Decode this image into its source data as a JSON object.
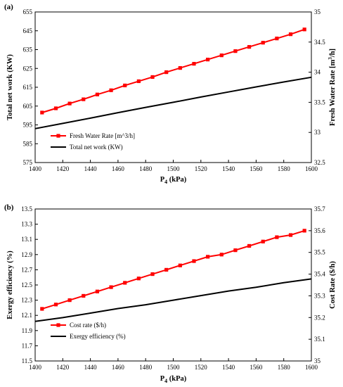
{
  "chart_data": [
    {
      "type": "line",
      "panel_label": "(a)",
      "xlabel": "P4 (kPa)",
      "xlabel_main": "P",
      "xlabel_sub": "4",
      "xlabel_rest": " (kPa)",
      "ylabel_left": "Total net work (KW)",
      "ylabel_right": "Fresh Water Rate  [m3/h]",
      "ylabel_right_main": "Fresh Water Rate  [m",
      "ylabel_right_sup": "3",
      "ylabel_right_rest": "/h]",
      "xlim": [
        1400,
        1600
      ],
      "xticks": [
        "1400",
        "1420",
        "1440",
        "1460",
        "1480",
        "1500",
        "1520",
        "1540",
        "1560",
        "1580",
        "1600"
      ],
      "ylim_left": [
        575,
        655
      ],
      "yticks_left": [
        "575",
        "585",
        "595",
        "605",
        "615",
        "625",
        "635",
        "645",
        "655"
      ],
      "ylim_right": [
        32.5,
        35
      ],
      "yticks_right": [
        "32.5",
        "33",
        "33.5",
        "34",
        "34.5",
        "35"
      ],
      "legend_position": "lower-left",
      "grid": false,
      "series": [
        {
          "name": "Fresh Water Rate  [m^3/h]",
          "axis": "right",
          "color": "#ff0000",
          "marker": "square",
          "x": [
            1405,
            1415,
            1425,
            1435,
            1445,
            1455,
            1465,
            1475,
            1485,
            1495,
            1505,
            1515,
            1525,
            1535,
            1545,
            1555,
            1565,
            1575,
            1585,
            1595
          ],
          "values": [
            33.33,
            33.4,
            33.48,
            33.55,
            33.63,
            33.7,
            33.78,
            33.85,
            33.92,
            34.0,
            34.07,
            34.14,
            34.21,
            34.28,
            34.35,
            34.42,
            34.49,
            34.56,
            34.63,
            34.71
          ]
        },
        {
          "name": "Total net work (KW)",
          "axis": "left",
          "color": "#000000",
          "marker": "none",
          "x": [
            1400,
            1420,
            1440,
            1460,
            1480,
            1500,
            1520,
            1540,
            1560,
            1580,
            1600
          ],
          "values": [
            593,
            595.8,
            598.6,
            601.5,
            604.3,
            607,
            609.8,
            612.5,
            615.2,
            617.8,
            620.3
          ]
        }
      ]
    },
    {
      "type": "line",
      "panel_label": "(b)",
      "xlabel": "P4 (kPa)",
      "xlabel_main": "P",
      "xlabel_sub": "4",
      "xlabel_rest": " (kPa)",
      "ylabel_left": "Exergy efficiency (%)",
      "ylabel_right": "Cost Rate ($/h)",
      "xlim": [
        1400,
        1600
      ],
      "xticks": [
        "1400",
        "1420",
        "1440",
        "1460",
        "1480",
        "1500",
        "1520",
        "1540",
        "1560",
        "1580",
        "1600"
      ],
      "ylim_left": [
        11.5,
        13.5
      ],
      "yticks_left": [
        "11.5",
        "11.7",
        "11.9",
        "12.1",
        "12.3",
        "12.5",
        "12.7",
        "12.9",
        "13.1",
        "13.3",
        "13.5"
      ],
      "ylim_right": [
        35,
        35.7
      ],
      "yticks_right": [
        "35",
        "35.1",
        "35.2",
        "35.3",
        "35.4",
        "35.5",
        "35.6",
        "35.7"
      ],
      "legend_position": "lower-left",
      "grid": false,
      "series": [
        {
          "name": "Cost rate ($/h)",
          "axis": "right",
          "color": "#ff0000",
          "marker": "square",
          "x": [
            1405,
            1415,
            1425,
            1435,
            1445,
            1455,
            1465,
            1475,
            1485,
            1495,
            1505,
            1515,
            1525,
            1535,
            1545,
            1555,
            1565,
            1575,
            1585,
            1595
          ],
          "values": [
            35.24,
            35.26,
            35.28,
            35.3,
            35.32,
            35.34,
            35.36,
            35.38,
            35.4,
            35.42,
            35.44,
            35.46,
            35.48,
            35.49,
            35.51,
            35.53,
            35.55,
            35.57,
            35.58,
            35.6
          ]
        },
        {
          "name": "Exergy efficiency (%)",
          "axis": "left",
          "color": "#000000",
          "marker": "none",
          "x": [
            1400,
            1420,
            1440,
            1460,
            1480,
            1500,
            1520,
            1540,
            1560,
            1580,
            1600
          ],
          "values": [
            12.02,
            12.07,
            12.13,
            12.19,
            12.24,
            12.3,
            12.36,
            12.42,
            12.47,
            12.53,
            12.58
          ]
        }
      ]
    }
  ],
  "colors": {
    "red_series": "#ff0000",
    "black_series": "#000000"
  }
}
